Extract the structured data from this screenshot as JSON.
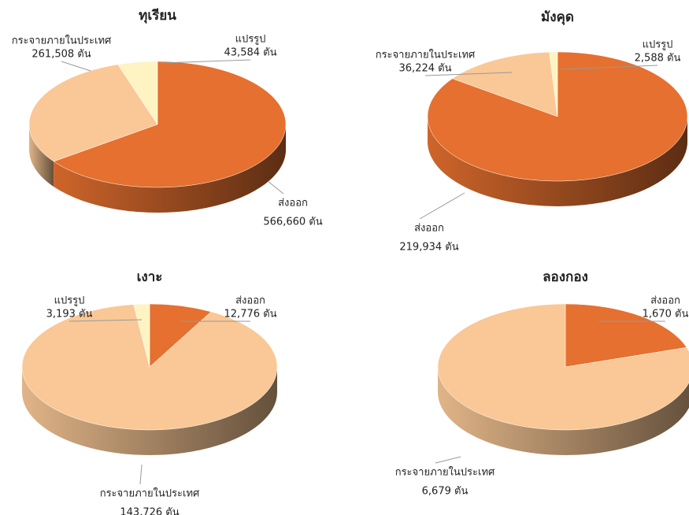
{
  "chart_data": [
    {
      "type": "pie",
      "title": "ทุเรียน",
      "categories": [
        "ส่งออก",
        "กระจายภายในประเทศ",
        "แปรรูป"
      ],
      "values": [
        566660,
        261508,
        43584
      ],
      "value_labels": [
        "566,660 ตัน",
        "261,508 ตัน",
        "43,584 ตัน"
      ],
      "colors": [
        "#e5702f",
        "#f9c896",
        "#fef3c2"
      ]
    },
    {
      "type": "pie",
      "title": "มังคุด",
      "categories": [
        "ส่งออก",
        "กระจายภายในประเทศ",
        "แปรรูป"
      ],
      "values": [
        219934,
        36224,
        2588
      ],
      "value_labels": [
        "219,934 ตัน",
        "36,224 ตัน",
        "2,588 ตัน"
      ],
      "colors": [
        "#e5702f",
        "#f9c896",
        "#fef3c2"
      ]
    },
    {
      "type": "pie",
      "title": "เงาะ",
      "categories": [
        "ส่งออก",
        "กระจายภายในประเทศ",
        "แปรรูป"
      ],
      "values": [
        12776,
        143726,
        3193
      ],
      "value_labels": [
        "12,776 ตัน",
        "143,726 ตัน",
        "3,193 ตัน"
      ],
      "colors": [
        "#e5702f",
        "#f9c896",
        "#fef3c2"
      ]
    },
    {
      "type": "pie",
      "title": "ลองกอง",
      "categories": [
        "ส่งออก",
        "กระจายภายในประเทศ"
      ],
      "values": [
        1670,
        6679
      ],
      "value_labels": [
        "1,670 ตัน",
        "6,679 ตัน"
      ],
      "colors": [
        "#e5702f",
        "#f9c896"
      ]
    }
  ]
}
